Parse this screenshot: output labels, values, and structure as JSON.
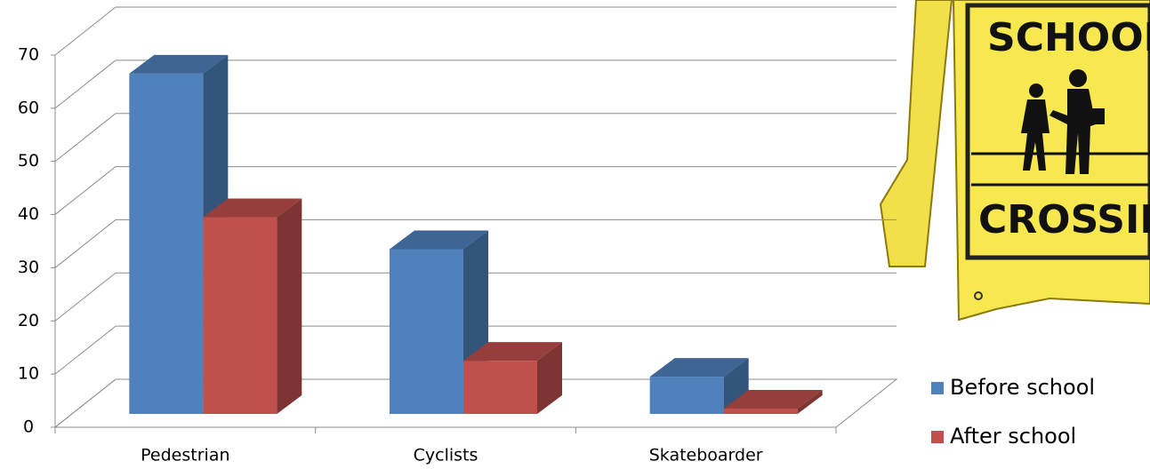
{
  "chart_data": {
    "type": "bar3d",
    "categories": [
      "Pedestrian",
      "Cyclists",
      "Skateboarder"
    ],
    "series": [
      {
        "name": "Before school",
        "color": "#4f81bd",
        "values": [
          64,
          31,
          7
        ]
      },
      {
        "name": "After school",
        "color": "#c0504d",
        "values": [
          37,
          10,
          1
        ]
      }
    ],
    "ylim": [
      0,
      70
    ],
    "yticks": [
      0,
      10,
      20,
      30,
      40,
      50,
      60,
      70
    ],
    "grid": true
  },
  "sign": {
    "top_text": "SCHOOL",
    "bottom_text": "CROSSING"
  }
}
